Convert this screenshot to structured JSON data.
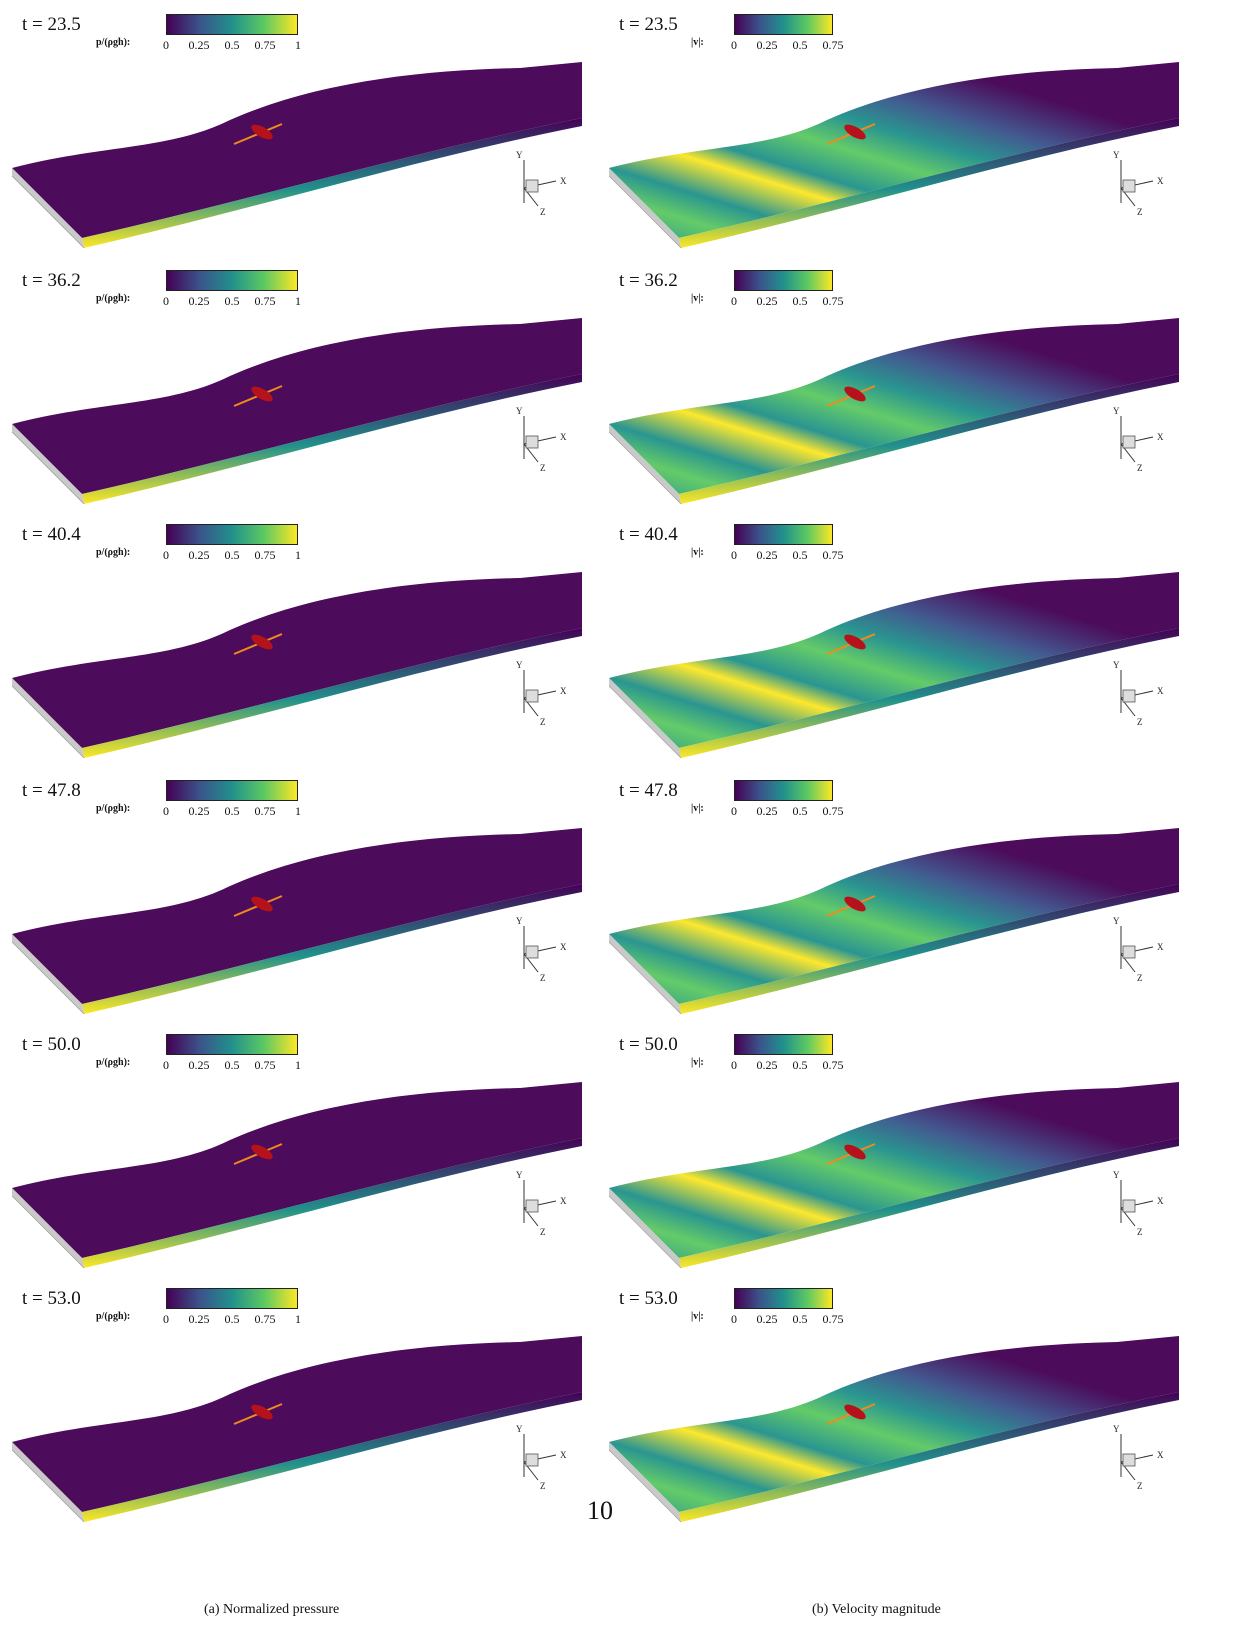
{
  "panels": {
    "pressure": {
      "colorbar_label": "p/(ρgh):",
      "ticks": [
        "0",
        "0.25",
        "0.5",
        "0.75",
        "1"
      ],
      "times": [
        "t = 23.5",
        "t = 36.2",
        "t = 40.4",
        "t = 47.8",
        "t = 50.0",
        "t = 53.0"
      ]
    },
    "velocity": {
      "colorbar_label": "|v|:",
      "ticks": [
        "0",
        "0.25",
        "0.5",
        "0.75"
      ],
      "times": [
        "t = 23.5",
        "t = 36.2",
        "t = 40.4",
        "t = 47.8",
        "t = 50.0",
        "t = 53.0"
      ]
    }
  },
  "axis_triad": {
    "x": "X",
    "y": "Y",
    "z": "Z"
  },
  "colormap": [
    "#440154",
    "#3b528b",
    "#21918c",
    "#5ec962",
    "#fde725"
  ],
  "captions": {
    "left": "(a) Normalized pressure",
    "right": "(b) Velocity magnitude"
  },
  "page_number": "10"
}
